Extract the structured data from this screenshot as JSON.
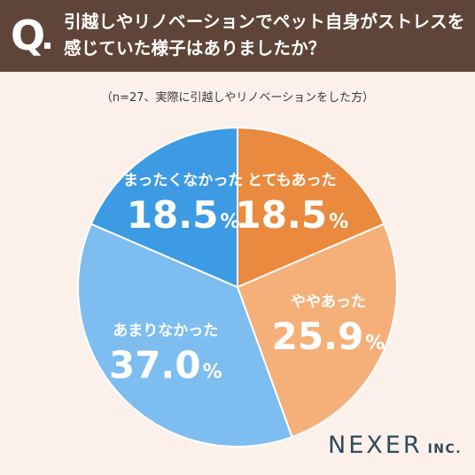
{
  "header": {
    "q_mark": "Q",
    "title_line1": "引越しやリノベーションでペット自身がストレスを",
    "title_line2": "感じていた様子はありましたか？"
  },
  "subtitle": "（n=27、実際に引越しやリノベーションをした方）",
  "logo": {
    "main": "NEXER",
    "suffix": "INC."
  },
  "chart_data": {
    "type": "pie",
    "title": "引越しやリノベーションでペット自身がストレスを感じていた様子はありましたか？",
    "subtitle": "（n=27、実際に引越しやリノベーションをした方）",
    "unit": "%",
    "slices": [
      {
        "label": "とてもあった",
        "value": 18.5,
        "value_text": "18.5",
        "color": "#ea8a3e",
        "text_color": "#ffffff"
      },
      {
        "label": "ややあった",
        "value": 25.9,
        "value_text": "25.9",
        "color": "#f5b07a",
        "text_color": "#ffffff"
      },
      {
        "label": "あまりなかった",
        "value": 37.0,
        "value_text": "37.0",
        "color": "#7dbdf0",
        "text_color": "#ffffff"
      },
      {
        "label": "まったくなかった",
        "value": 18.5,
        "value_text": "18.5",
        "color": "#3d9be3",
        "text_color": "#ffffff"
      }
    ]
  }
}
